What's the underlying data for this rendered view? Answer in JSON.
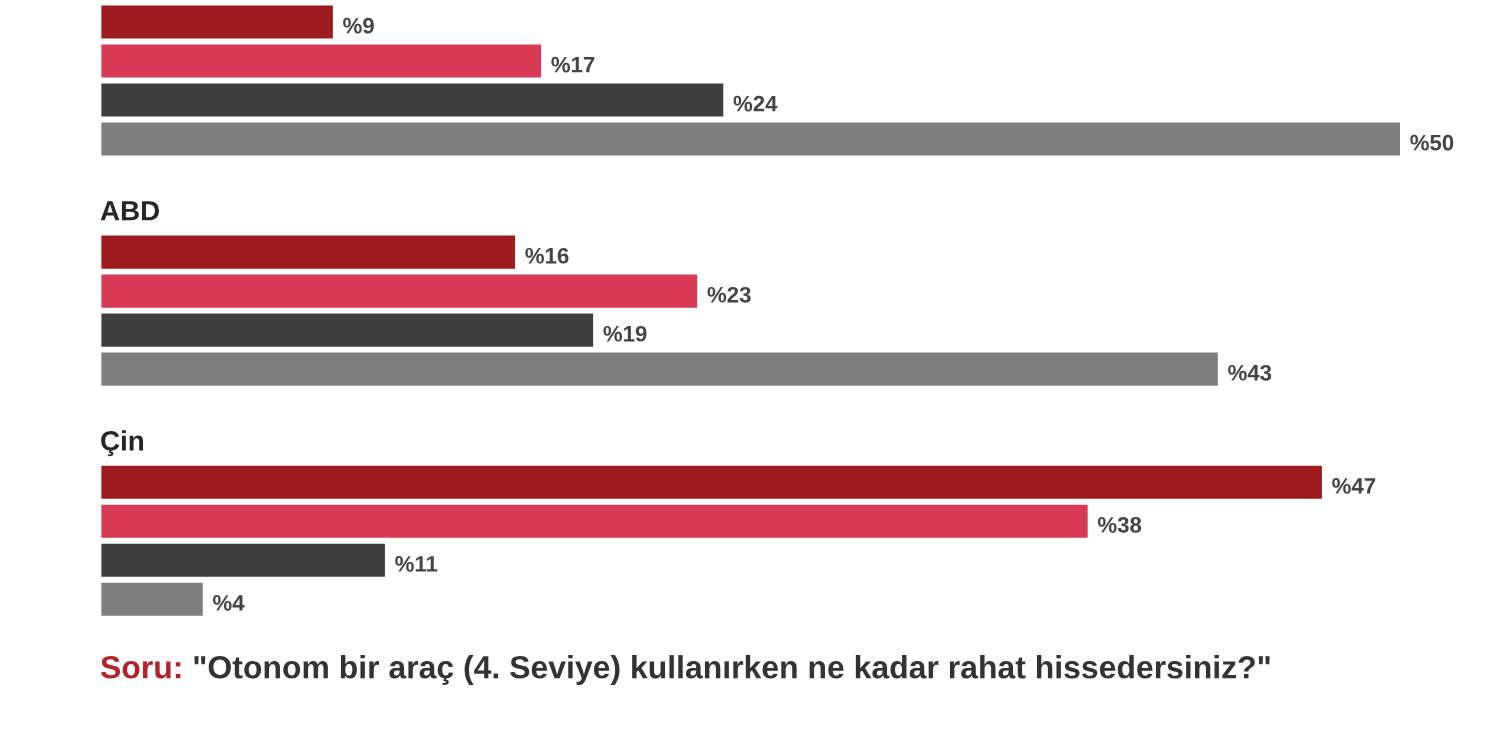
{
  "chart_data": {
    "type": "bar",
    "orientation": "horizontal",
    "categories": [
      null,
      "ABD",
      "Çin"
    ],
    "series": [
      {
        "color": "#9e1b20",
        "values": [
          9,
          16,
          47
        ],
        "value_labels": [
          "%9",
          "%16",
          "%47"
        ]
      },
      {
        "color": "#d93a55",
        "values": [
          17,
          23,
          38
        ],
        "value_labels": [
          "%17",
          "%23",
          "%38"
        ]
      },
      {
        "color": "#3e3e3e",
        "values": [
          24,
          19,
          11
        ],
        "value_labels": [
          "%24",
          "%19",
          "%11"
        ]
      },
      {
        "color": "#7f7f7f",
        "values": [
          50,
          43,
          4
        ],
        "value_labels": [
          "%50",
          "%43",
          "%4"
        ]
      }
    ],
    "tick_labels": false,
    "annotations": [
      "Soru:",
      "\"Otonom bir araç (4. Seviye) kullanırken ne kadar rahat hissedersiniz?\""
    ]
  }
}
